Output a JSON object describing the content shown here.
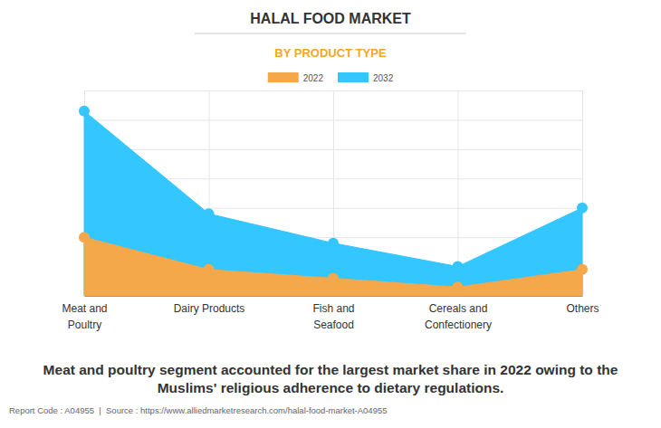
{
  "chart_data": {
    "type": "area",
    "title": "HALAL FOOD MARKET",
    "subtitle": "BY PRODUCT TYPE",
    "categories": [
      "Meat and Poultry",
      "Dairy Products",
      "Fish and Seafood",
      "Cereals and Confectionery",
      "Others"
    ],
    "series": [
      {
        "name": "2022",
        "color": "#f4a84a",
        "values": [
          2.0,
          0.9,
          0.6,
          0.3,
          0.9
        ]
      },
      {
        "name": "2032",
        "color": "#33c6ff",
        "values": [
          6.3,
          2.8,
          1.8,
          1.0,
          3.0
        ]
      }
    ],
    "ylim": [
      0,
      7
    ],
    "yticks": [
      0,
      1,
      2,
      3,
      4,
      5,
      6,
      7
    ],
    "grid": true,
    "tick_labels": "x",
    "legend": "top",
    "marker": "circle",
    "annotations": [
      "Meat and poultry segment accounted for the largest market share in 2022 owing to the Muslims' religious adherence to dietary regulations.",
      "Report Code : A04955  |  Source : https://www.alliedmarketresearch.com/halal-food-market-A04955"
    ]
  }
}
